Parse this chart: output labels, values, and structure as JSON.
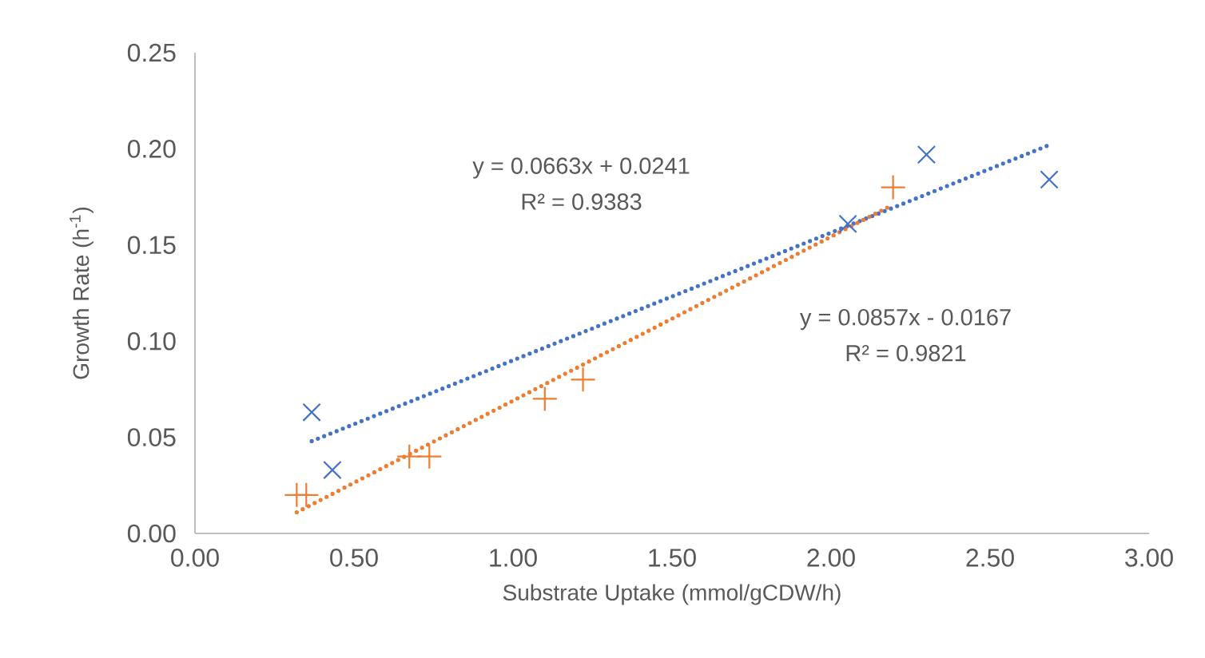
{
  "chart_data": {
    "type": "scatter",
    "xlabel": "Substrate Uptake (mmol/gCDW/h)",
    "ylabel": "Growth Rate (h$^{-1}$)",
    "xlim": [
      0,
      3
    ],
    "ylim": [
      0,
      0.25
    ],
    "xticks": [
      {
        "value": 0,
        "label": "0.00"
      },
      {
        "value": 0.5,
        "label": "0.50"
      },
      {
        "value": 1,
        "label": "1.00"
      },
      {
        "value": 1.5,
        "label": "1.50"
      },
      {
        "value": 2,
        "label": "2.00"
      },
      {
        "value": 2.5,
        "label": "2.50"
      },
      {
        "value": 3,
        "label": "3.00"
      }
    ],
    "yticks": [
      {
        "value": 0,
        "label": "0.00"
      },
      {
        "value": 0.05,
        "label": "0.05"
      },
      {
        "value": 0.1,
        "label": "0.10"
      },
      {
        "value": 0.15,
        "label": "0.15"
      },
      {
        "value": 0.2,
        "label": "0.20"
      },
      {
        "value": 0.25,
        "label": "0.25"
      }
    ],
    "grid": false,
    "series": [
      {
        "color": "#4472c4",
        "marker": "cross",
        "x": [
          0.367,
          0.432,
          2.053,
          2.3,
          2.686
        ],
        "values": [
          0.063,
          0.033,
          0.161,
          0.197,
          0.184
        ]
      },
      {
        "color": "#ed7d31",
        "marker": "plus",
        "x": [
          0.32,
          0.35,
          0.674,
          0.737,
          1.1,
          1.22,
          2.195
        ],
        "values": [
          0.02,
          0.02,
          0.04,
          0.04,
          0.07,
          0.08,
          0.18
        ]
      },
      {
        "type": "line",
        "color": "#4472c4",
        "marker": "none",
        "line_style": "dotted",
        "x": [
          0.367,
          2.686
        ],
        "values": [
          0.048,
          0.202
        ]
      },
      {
        "type": "line",
        "color": "#ed7d31",
        "marker": "none",
        "line_style": "dotted",
        "x": [
          0.32,
          2.195
        ],
        "values": [
          0.011,
          0.171
        ]
      }
    ],
    "annotations": [
      "y = 0.0663x + 0.0241",
      "R² = 0.9383",
      "y = 0.0857x - 0.0167",
      "R² = 0.9821"
    ]
  }
}
